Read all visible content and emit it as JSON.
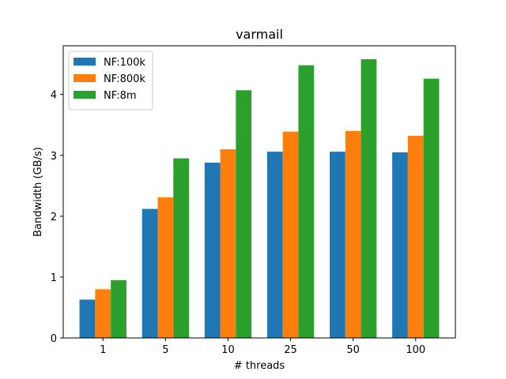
{
  "chart_data": {
    "type": "bar",
    "title": "varmail",
    "xlabel": "# threads",
    "ylabel": "Bandwidth (GB/s)",
    "categories": [
      "1",
      "5",
      "10",
      "25",
      "50",
      "100"
    ],
    "ylim": [
      0,
      4.8
    ],
    "yticks": [
      0,
      1,
      2,
      3,
      4
    ],
    "grid": false,
    "legend_position": "top-left",
    "series": [
      {
        "name": "NF:100k",
        "color": "#1f77b4",
        "values": [
          0.63,
          2.12,
          2.88,
          3.06,
          3.06,
          3.05
        ]
      },
      {
        "name": "NF:800k",
        "color": "#ff7f0e",
        "values": [
          0.8,
          2.31,
          3.1,
          3.39,
          3.4,
          3.32
        ]
      },
      {
        "name": "NF:8m",
        "color": "#2ca02c",
        "values": [
          0.95,
          2.95,
          4.07,
          4.48,
          4.58,
          4.26
        ]
      }
    ]
  }
}
